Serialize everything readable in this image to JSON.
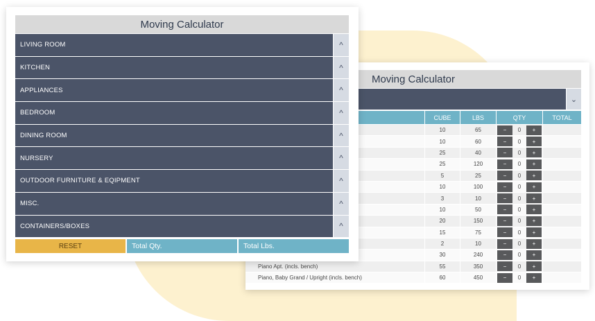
{
  "front": {
    "title": "Moving Calculator",
    "categories": [
      {
        "label": "LIVING ROOM",
        "toggle": "^"
      },
      {
        "label": "KITCHEN",
        "toggle": "^"
      },
      {
        "label": "APPLIANCES",
        "toggle": "^"
      },
      {
        "label": "BEDROOM",
        "toggle": "^"
      },
      {
        "label": "DINING ROOM",
        "toggle": "^"
      },
      {
        "label": "NURSERY",
        "toggle": "^"
      },
      {
        "label": "OUTDOOR FURNITURE & EQIPMENT",
        "toggle": "^"
      },
      {
        "label": "MISC.",
        "toggle": "^"
      },
      {
        "label": "CONTAINERS/BOXES",
        "toggle": "^"
      }
    ],
    "reset_label": "RESET",
    "total_qty_label": "Total Qty.",
    "total_lbs_label": "Total Lbs."
  },
  "back": {
    "title": "Moving Calculator",
    "select_toggle": "⌄",
    "columns": {
      "name": "",
      "cube": "CUBE",
      "lbs": "LBS",
      "qty": "QTY",
      "total": "TOTAL"
    },
    "minus": "−",
    "plus": "+",
    "rows": [
      {
        "name": "",
        "cube": "10",
        "lbs": "65",
        "qty": "0",
        "total": ""
      },
      {
        "name": "",
        "cube": "10",
        "lbs": "60",
        "qty": "0",
        "total": ""
      },
      {
        "name": "",
        "cube": "25",
        "lbs": "40",
        "qty": "0",
        "total": ""
      },
      {
        "name": "",
        "cube": "25",
        "lbs": "120",
        "qty": "0",
        "total": ""
      },
      {
        "name": "",
        "cube": "5",
        "lbs": "25",
        "qty": "0",
        "total": ""
      },
      {
        "name": "",
        "cube": "10",
        "lbs": "100",
        "qty": "0",
        "total": ""
      },
      {
        "name": "",
        "cube": "3",
        "lbs": "10",
        "qty": "0",
        "total": ""
      },
      {
        "name": "",
        "cube": "10",
        "lbs": "50",
        "qty": "0",
        "total": ""
      },
      {
        "name": "",
        "cube": "20",
        "lbs": "150",
        "qty": "0",
        "total": ""
      },
      {
        "name": "",
        "cube": "15",
        "lbs": "75",
        "qty": "0",
        "total": ""
      },
      {
        "name": "",
        "cube": "2",
        "lbs": "10",
        "qty": "0",
        "total": ""
      },
      {
        "name": "",
        "cube": "30",
        "lbs": "240",
        "qty": "0",
        "total": ""
      },
      {
        "name": "Piano Apt. (incls. bench)",
        "cube": "55",
        "lbs": "350",
        "qty": "0",
        "total": ""
      },
      {
        "name": "Piano, Baby Grand / Upright (incls. bench)",
        "cube": "60",
        "lbs": "450",
        "qty": "0",
        "total": ""
      }
    ]
  }
}
